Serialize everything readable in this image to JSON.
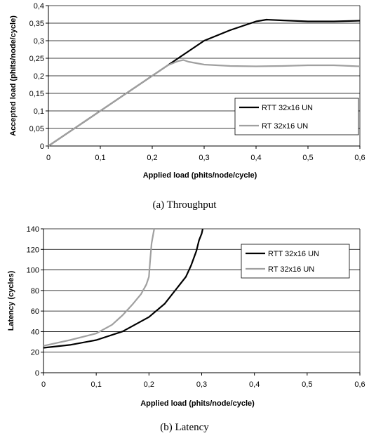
{
  "chart_data": [
    {
      "type": "line",
      "caption": "(a)  Throughput",
      "xlabel": "Applied load (phits/node/cycle)",
      "ylabel": "Accepted load (phits/node/cycle)",
      "xlim": [
        0,
        0.6
      ],
      "ylim": [
        0,
        0.4
      ],
      "xticks": [
        "0",
        "0,1",
        "0,2",
        "0,3",
        "0,4",
        "0,5",
        "0,6"
      ],
      "yticks": [
        "0",
        "0,05",
        "0,1",
        "0,15",
        "0,2",
        "0,25",
        "0,3",
        "0,35",
        "0,4"
      ],
      "grid": "horizontal",
      "legend_position": "right",
      "series": [
        {
          "name": "RTT 32x16 UN",
          "color": "#000000",
          "x": [
            0,
            0.05,
            0.1,
            0.15,
            0.2,
            0.22,
            0.25,
            0.27,
            0.3,
            0.35,
            0.4,
            0.42,
            0.45,
            0.5,
            0.55,
            0.6
          ],
          "y": [
            0,
            0.05,
            0.1,
            0.15,
            0.2,
            0.22,
            0.25,
            0.27,
            0.3,
            0.33,
            0.355,
            0.36,
            0.358,
            0.355,
            0.355,
            0.357
          ]
        },
        {
          "name": "RT 32x16 UN",
          "color": "#a0a0a0",
          "x": [
            0,
            0.05,
            0.1,
            0.15,
            0.2,
            0.23,
            0.25,
            0.26,
            0.27,
            0.3,
            0.35,
            0.4,
            0.45,
            0.5,
            0.55,
            0.6
          ],
          "y": [
            0,
            0.05,
            0.1,
            0.15,
            0.2,
            0.23,
            0.242,
            0.245,
            0.24,
            0.232,
            0.228,
            0.227,
            0.228,
            0.23,
            0.23,
            0.227
          ]
        }
      ]
    },
    {
      "type": "line",
      "caption": "(b)  Latency",
      "xlabel": "Applied load (phits/node/cycle)",
      "ylabel": "Latency (cycles)",
      "xlim": [
        0,
        0.6
      ],
      "ylim": [
        0,
        150
      ],
      "xticks": [
        "0",
        "0,1",
        "0,2",
        "0,3",
        "0,4",
        "0,5",
        "0,6"
      ],
      "yticks": [
        "0",
        "20",
        "40",
        "60",
        "80",
        "100",
        "120",
        "140"
      ],
      "grid": "horizontal",
      "legend_position": "top-right",
      "series": [
        {
          "name": "RTT 32x16 UN",
          "color": "#000000",
          "x": [
            0,
            0.05,
            0.1,
            0.15,
            0.2,
            0.23,
            0.25,
            0.27,
            0.28,
            0.29,
            0.295,
            0.3,
            0.302
          ],
          "y": [
            26,
            29,
            34,
            43,
            58,
            72,
            86,
            100,
            112,
            127,
            138,
            145,
            150
          ]
        },
        {
          "name": "RT 32x16 UN",
          "color": "#a0a0a0",
          "x": [
            0,
            0.05,
            0.1,
            0.13,
            0.15,
            0.17,
            0.185,
            0.195,
            0.2,
            0.202,
            0.205,
            0.21
          ],
          "y": [
            28,
            34,
            41,
            50,
            60,
            72,
            82,
            92,
            100,
            115,
            135,
            150
          ]
        }
      ]
    }
  ]
}
